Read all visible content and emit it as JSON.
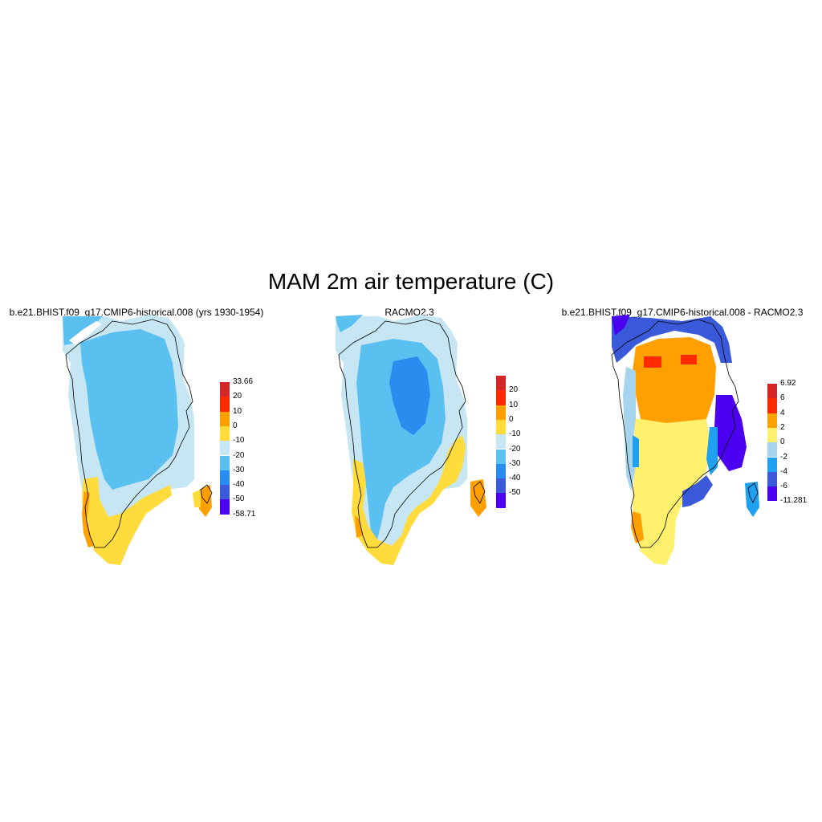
{
  "title": "MAM 2m air temperature (C)",
  "panels": [
    {
      "title": "b.e21.BHIST.f09_g17.CMIP6-historical.008 (yrs 1930-1954)",
      "colorbar": {
        "colors": [
          "#4b00f0",
          "#3a5ad9",
          "#2b8cf0",
          "#5ac0f0",
          "#c7e6f4",
          "#ffdb3b",
          "#ffa000",
          "#ff2a00",
          "#d42626"
        ],
        "labels": [
          "-58.71",
          "-50",
          "-40",
          "-30",
          "-20",
          "-10",
          "0",
          "10",
          "20",
          "33.66"
        ]
      }
    },
    {
      "title": "RACMO2.3",
      "colorbar": {
        "colors": [
          "#4b00f0",
          "#3a5ad9",
          "#2b8cf0",
          "#5ac0f0",
          "#c7e6f4",
          "#ffdb3b",
          "#ffa000",
          "#ff2a00",
          "#d42626"
        ],
        "labels": [
          "-50",
          "-40",
          "-30",
          "-20",
          "-10",
          "0",
          "10",
          "20"
        ]
      }
    },
    {
      "title": "b.e21.BHIST.f09_g17.CMIP6-historical.008 - RACMO2.3",
      "colorbar": {
        "colors": [
          "#4b00f0",
          "#3a5ad9",
          "#1fa0f0",
          "#a6d4ec",
          "#fff06e",
          "#ffa000",
          "#ff2a00",
          "#d42626"
        ],
        "labels": [
          "-11.281",
          "-6",
          "-4",
          "-2",
          "0",
          "2",
          "4",
          "6",
          "6.92"
        ]
      }
    }
  ]
}
